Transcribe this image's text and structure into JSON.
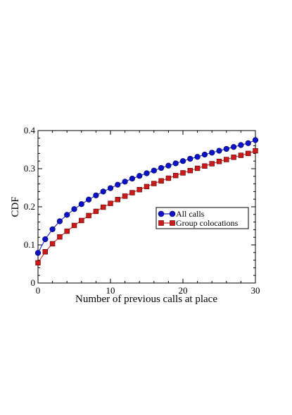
{
  "chart_data": {
    "type": "line",
    "title": "",
    "xlabel": "Number of previous calls at place",
    "ylabel": "CDF",
    "xlim": [
      0,
      30
    ],
    "ylim": [
      0,
      0.4
    ],
    "xticks": [
      "0",
      "10",
      "20",
      "30"
    ],
    "yticks": [
      "0",
      "0.1",
      "0.2",
      "0.3",
      "0.4"
    ],
    "grid": false,
    "legend_position": "center-right",
    "x": [
      0,
      1,
      2,
      3,
      4,
      5,
      6,
      7,
      8,
      9,
      10,
      11,
      12,
      13,
      14,
      15,
      16,
      17,
      18,
      19,
      20,
      21,
      22,
      23,
      24,
      25,
      26,
      27,
      28,
      29,
      30
    ],
    "series": [
      {
        "name": "All calls",
        "color": "#0a12c8",
        "marker": "circle",
        "values": [
          0.079,
          0.115,
          0.141,
          0.162,
          0.179,
          0.194,
          0.207,
          0.219,
          0.23,
          0.24,
          0.249,
          0.258,
          0.266,
          0.274,
          0.281,
          0.288,
          0.295,
          0.302,
          0.308,
          0.314,
          0.32,
          0.326,
          0.331,
          0.337,
          0.342,
          0.347,
          0.352,
          0.357,
          0.362,
          0.367,
          0.375
        ]
      },
      {
        "name": "Group colocations",
        "color": "#cc1a1a",
        "marker": "square",
        "values": [
          0.053,
          0.082,
          0.103,
          0.121,
          0.136,
          0.151,
          0.164,
          0.177,
          0.188,
          0.199,
          0.209,
          0.219,
          0.228,
          0.237,
          0.245,
          0.253,
          0.261,
          0.268,
          0.275,
          0.282,
          0.289,
          0.295,
          0.301,
          0.307,
          0.313,
          0.319,
          0.324,
          0.33,
          0.335,
          0.34,
          0.347
        ]
      }
    ]
  }
}
